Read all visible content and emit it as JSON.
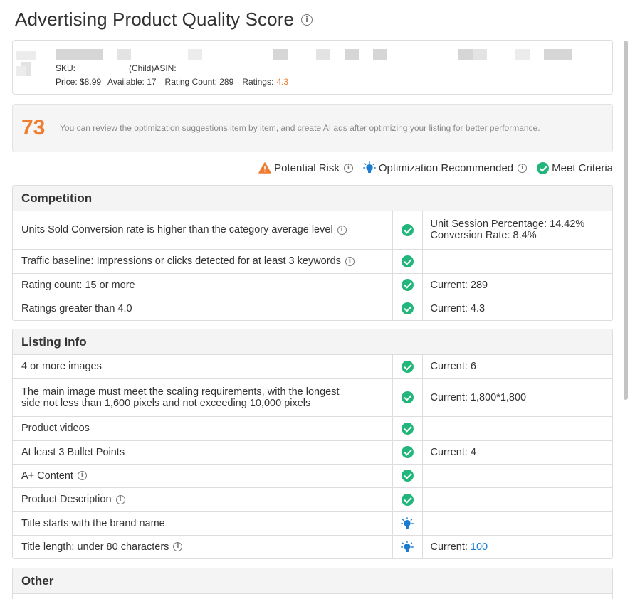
{
  "page": {
    "title": "Advertising Product Quality Score"
  },
  "product": {
    "sku_label": "SKU:",
    "child_asin_label": "(Child)ASIN:",
    "price": "Price: $8.99",
    "available": "Available: 17",
    "rating_count": "Rating Count: 289",
    "ratings_label": "Ratings:",
    "ratings_value": "4.3"
  },
  "score": {
    "value": "73",
    "message": "You can review the optimization suggestions item by item, and create AI ads after optimizing your listing for better performance."
  },
  "legend": {
    "risk": "Potential Risk",
    "recommended": "Optimization Recommended",
    "meet": "Meet Criteria"
  },
  "colors": {
    "score": "#ef7d32",
    "meet": "#22b67a",
    "recommended": "#1a7bd0",
    "risk": "#ef7d32"
  },
  "competition": {
    "title": "Competition",
    "rows": [
      {
        "label": "Units Sold Conversion rate is higher than the category average level",
        "status": "meet",
        "value_line1": "Unit Session Percentage: 14.42%",
        "value_line2": "Conversion Rate: 8.4%"
      },
      {
        "label": "Traffic baseline: Impressions or clicks detected for at least 3 keywords",
        "status": "meet",
        "value": ""
      },
      {
        "label": "Rating count: 15 or more",
        "status": "meet",
        "value": "Current: 289"
      },
      {
        "label": "Ratings greater than 4.0",
        "status": "meet",
        "value": "Current: 4.3"
      }
    ]
  },
  "listing": {
    "title": "Listing Info",
    "rows": [
      {
        "label": "4 or more images",
        "status": "meet",
        "value": "Current: 6"
      },
      {
        "label_line1": "The main image must meet the scaling requirements, with the longest",
        "label_line2": "side not less than 1,600 pixels and not exceeding 10,000 pixels",
        "status": "meet",
        "value": "Current: 1,800*1,800"
      },
      {
        "label": "Product videos",
        "status": "meet",
        "value": ""
      },
      {
        "label": "At least 3 Bullet Points",
        "status": "meet",
        "value": "Current: 4"
      },
      {
        "label": "A+ Content",
        "status": "meet",
        "value": ""
      },
      {
        "label": "Product Description",
        "status": "meet",
        "value": ""
      },
      {
        "label": "Title starts with the brand name",
        "status": "recommended",
        "value": ""
      },
      {
        "label": "Title length: under 80 characters",
        "status": "recommended",
        "value_prefix": "Current:",
        "value_number": "100"
      }
    ]
  },
  "other": {
    "title": "Other"
  }
}
